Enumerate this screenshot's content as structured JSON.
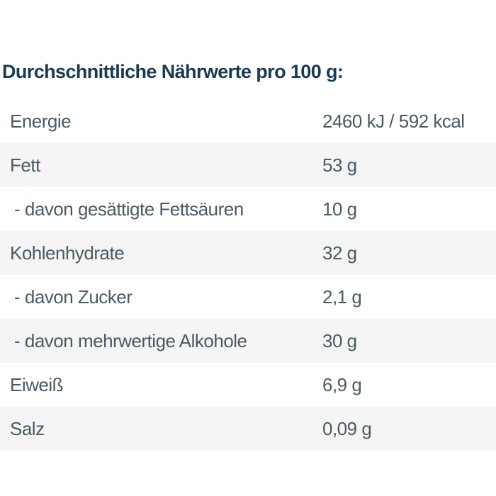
{
  "heading": {
    "text": "Durchschnittliche Nährwerte pro 100 g:"
  },
  "colors": {
    "heading_text": "#1a3a52",
    "body_text": "#4c5a63",
    "stripe": "#f5f5f5",
    "background": "#ffffff"
  },
  "table": {
    "rows": [
      {
        "label": "Energie",
        "value": "2460 kJ / 592 kcal",
        "indent": false
      },
      {
        "label": "Fett",
        "value": "53 g",
        "indent": false
      },
      {
        "label": "- davon gesättigte Fettsäuren",
        "value": "10 g",
        "indent": true
      },
      {
        "label": "Kohlenhydrate",
        "value": "32 g",
        "indent": false
      },
      {
        "label": "- davon Zucker",
        "value": "2,1 g",
        "indent": true
      },
      {
        "label": "- davon mehrwertige Alkohole",
        "value": "30 g",
        "indent": true
      },
      {
        "label": "Eiweiß",
        "value": "6,9 g",
        "indent": false
      },
      {
        "label": "Salz",
        "value": "0,09 g",
        "indent": false
      }
    ]
  }
}
